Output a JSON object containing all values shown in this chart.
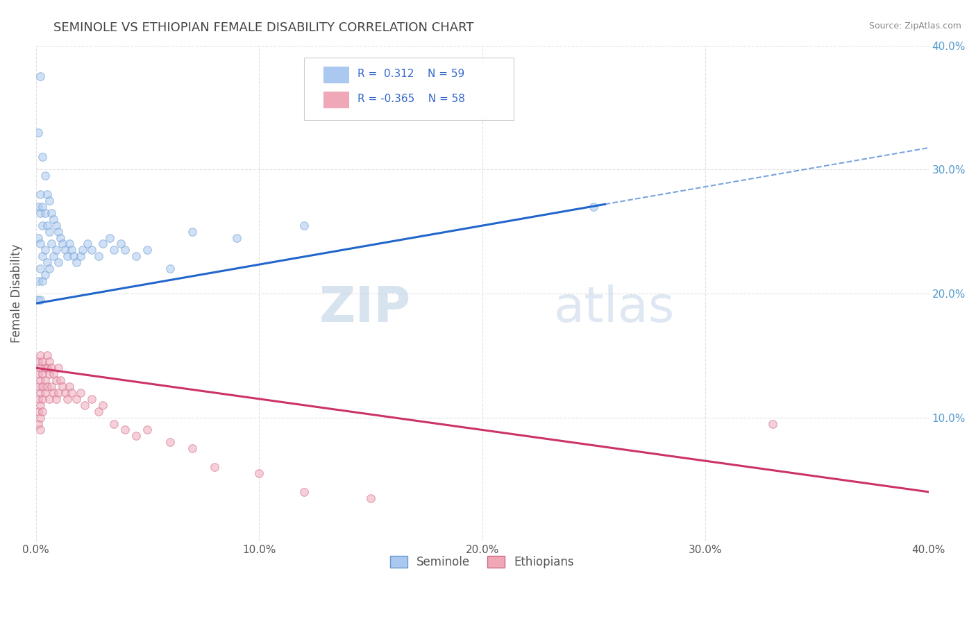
{
  "title": "SEMINOLE VS ETHIOPIAN FEMALE DISABILITY CORRELATION CHART",
  "source": "Source: ZipAtlas.com",
  "ylabel": "Female Disability",
  "xlim": [
    0.0,
    0.4
  ],
  "ylim": [
    0.0,
    0.4
  ],
  "xticks": [
    0.0,
    0.1,
    0.2,
    0.3,
    0.4
  ],
  "yticks": [
    0.1,
    0.2,
    0.3,
    0.4
  ],
  "xtick_labels": [
    "0.0%",
    "10.0%",
    "20.0%",
    "30.0%",
    "40.0%"
  ],
  "ytick_labels_right": [
    "10.0%",
    "20.0%",
    "30.0%",
    "40.0%"
  ],
  "background_color": "#ffffff",
  "grid_color": "#dddddd",
  "title_color": "#444444",
  "title_fontsize": 13,
  "seminole_color": "#aac8f0",
  "seminole_edge": "#6699cc",
  "ethiopian_color": "#f0a8b8",
  "ethiopian_edge": "#cc6688",
  "trend_blue": "#2266cc",
  "trend_pink": "#cc3366",
  "seminole_R": 0.312,
  "seminole_N": 59,
  "ethiopian_R": -0.365,
  "ethiopian_N": 58,
  "seminole_x": [
    0.001,
    0.001,
    0.001,
    0.001,
    0.001,
    0.002,
    0.002,
    0.002,
    0.002,
    0.002,
    0.002,
    0.003,
    0.003,
    0.003,
    0.003,
    0.003,
    0.004,
    0.004,
    0.004,
    0.004,
    0.005,
    0.005,
    0.005,
    0.006,
    0.006,
    0.006,
    0.007,
    0.007,
    0.008,
    0.008,
    0.009,
    0.009,
    0.01,
    0.01,
    0.011,
    0.012,
    0.013,
    0.014,
    0.015,
    0.016,
    0.017,
    0.018,
    0.02,
    0.021,
    0.023,
    0.025,
    0.028,
    0.03,
    0.033,
    0.035,
    0.038,
    0.04,
    0.045,
    0.05,
    0.06,
    0.07,
    0.09,
    0.12,
    0.25
  ],
  "seminole_y": [
    0.33,
    0.27,
    0.245,
    0.21,
    0.195,
    0.375,
    0.28,
    0.265,
    0.24,
    0.22,
    0.195,
    0.31,
    0.27,
    0.255,
    0.23,
    0.21,
    0.295,
    0.265,
    0.235,
    0.215,
    0.28,
    0.255,
    0.225,
    0.275,
    0.25,
    0.22,
    0.265,
    0.24,
    0.26,
    0.23,
    0.255,
    0.235,
    0.25,
    0.225,
    0.245,
    0.24,
    0.235,
    0.23,
    0.24,
    0.235,
    0.23,
    0.225,
    0.23,
    0.235,
    0.24,
    0.235,
    0.23,
    0.24,
    0.245,
    0.235,
    0.24,
    0.235,
    0.23,
    0.235,
    0.22,
    0.25,
    0.245,
    0.255,
    0.27
  ],
  "ethiopian_x": [
    0.001,
    0.001,
    0.001,
    0.001,
    0.001,
    0.001,
    0.002,
    0.002,
    0.002,
    0.002,
    0.002,
    0.002,
    0.002,
    0.003,
    0.003,
    0.003,
    0.003,
    0.003,
    0.004,
    0.004,
    0.004,
    0.005,
    0.005,
    0.005,
    0.006,
    0.006,
    0.006,
    0.007,
    0.007,
    0.008,
    0.008,
    0.009,
    0.009,
    0.01,
    0.01,
    0.011,
    0.012,
    0.013,
    0.014,
    0.015,
    0.016,
    0.018,
    0.02,
    0.022,
    0.025,
    0.028,
    0.03,
    0.035,
    0.04,
    0.045,
    0.05,
    0.06,
    0.07,
    0.08,
    0.1,
    0.12,
    0.15,
    0.33
  ],
  "ethiopian_y": [
    0.145,
    0.135,
    0.125,
    0.115,
    0.105,
    0.095,
    0.15,
    0.14,
    0.13,
    0.12,
    0.11,
    0.1,
    0.09,
    0.145,
    0.135,
    0.125,
    0.115,
    0.105,
    0.14,
    0.13,
    0.12,
    0.15,
    0.14,
    0.125,
    0.145,
    0.135,
    0.115,
    0.14,
    0.125,
    0.135,
    0.12,
    0.13,
    0.115,
    0.14,
    0.12,
    0.13,
    0.125,
    0.12,
    0.115,
    0.125,
    0.12,
    0.115,
    0.12,
    0.11,
    0.115,
    0.105,
    0.11,
    0.095,
    0.09,
    0.085,
    0.09,
    0.08,
    0.075,
    0.06,
    0.055,
    0.04,
    0.035,
    0.095
  ],
  "watermark_zip": "ZIP",
  "watermark_atlas": "atlas",
  "marker_size": 70,
  "alpha": 0.55,
  "blue_line_start_x": 0.0,
  "blue_line_end_x": 0.255,
  "blue_line_dash_start_x": 0.255,
  "blue_line_dash_end_x": 0.4,
  "blue_line_start_y": 0.192,
  "blue_line_end_y": 0.272,
  "pink_line_start_x": 0.0,
  "pink_line_end_x": 0.4,
  "pink_line_start_y": 0.14,
  "pink_line_end_y": 0.04
}
